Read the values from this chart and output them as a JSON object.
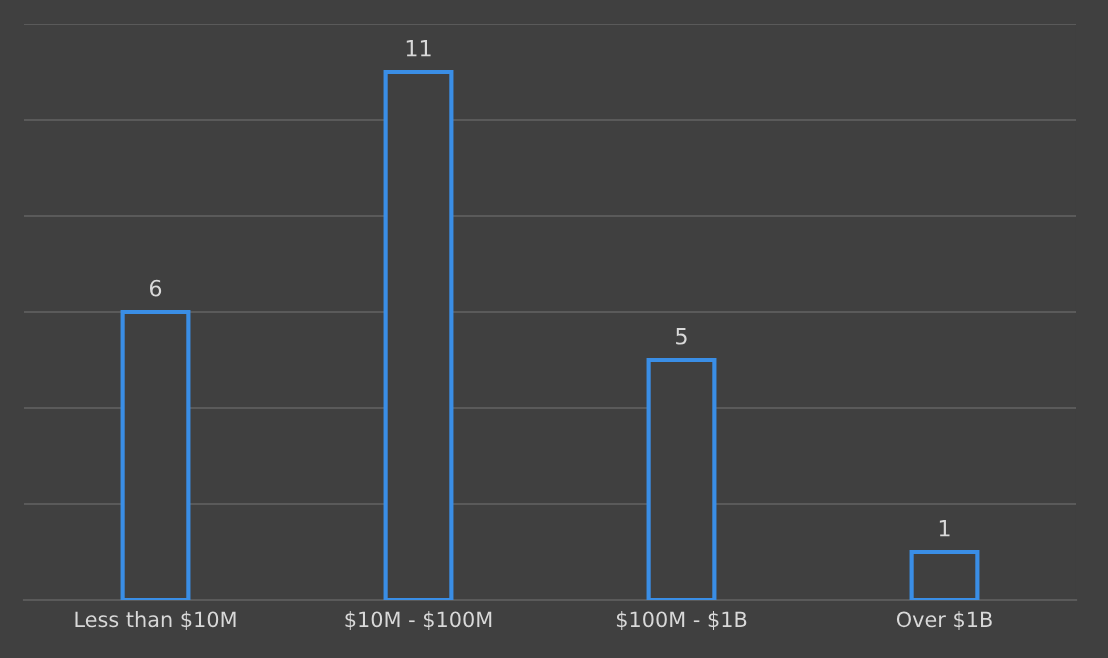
{
  "chart_data": {
    "type": "bar",
    "categories": [
      "Less than $10M",
      "$10M - $100M",
      "$100M - $1B",
      "Over $1B"
    ],
    "values": [
      6,
      11,
      5,
      1
    ],
    "color": "#3a8ee6",
    "ylim": [
      0,
      12
    ],
    "yticks": [
      {
        "value": 0,
        "label": null
      },
      {
        "value": 2,
        "label": null
      },
      {
        "value": 4,
        "label": null
      },
      {
        "value": 6,
        "label": null
      },
      {
        "value": 8,
        "label": null
      },
      {
        "value": 10,
        "label": null
      },
      {
        "value": 12,
        "label": null
      }
    ],
    "grid": "y",
    "data_labels": true,
    "tick_labels": "x"
  }
}
